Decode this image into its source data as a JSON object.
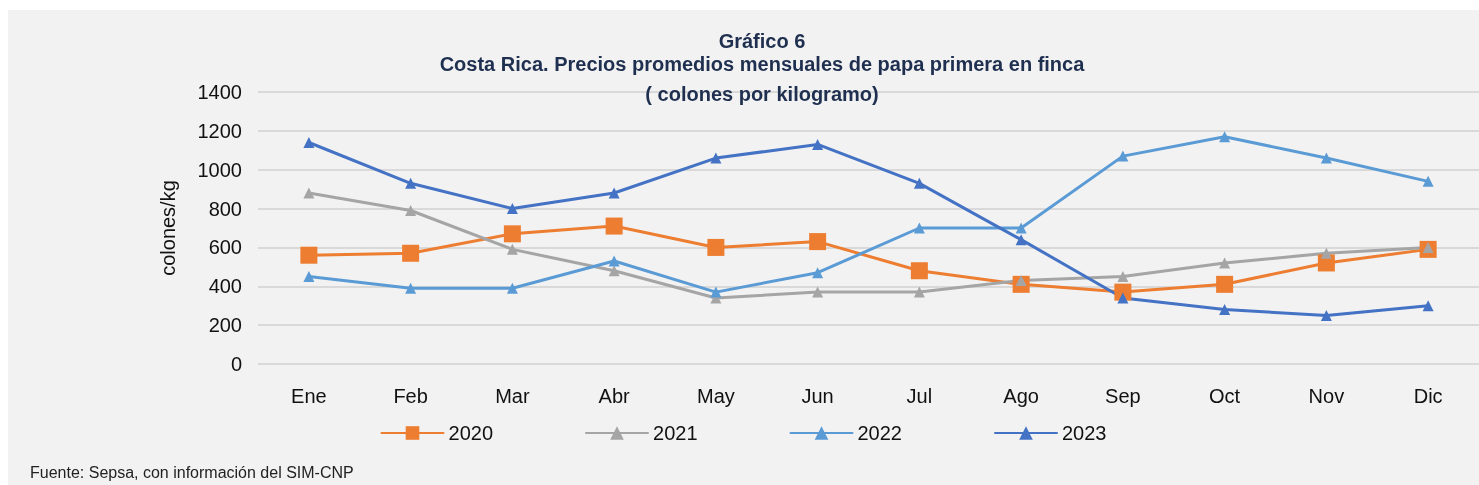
{
  "chart_data": {
    "type": "line",
    "title": "Gráfico 6",
    "subtitle": "Costa Rica. Precios promedios mensuales de papa primera en finca\n( colones por kilogramo)",
    "ylabel": "colones/kg",
    "annotations": [
      "Fuente: Sepsa, con información del SIM-CNP"
    ],
    "categories": [
      "Ene",
      "Feb",
      "Mar",
      "Abr",
      "May",
      "Jun",
      "Jul",
      "Ago",
      "Sep",
      "Oct",
      "Nov",
      "Dic"
    ],
    "series": [
      {
        "name": "2020",
        "color": "#ed7d31",
        "marker": "square",
        "values": [
          560,
          570,
          670,
          710,
          600,
          630,
          480,
          410,
          370,
          410,
          520,
          590
        ]
      },
      {
        "name": "2021",
        "color": "#a5a5a5",
        "marker": "triangle",
        "values": [
          880,
          790,
          590,
          480,
          340,
          370,
          370,
          430,
          450,
          520,
          570,
          600
        ]
      },
      {
        "name": "2022",
        "color": "#5b9bd5",
        "marker": "triangle",
        "values": [
          450,
          390,
          390,
          530,
          370,
          470,
          700,
          700,
          1070,
          1170,
          1060,
          940
        ]
      },
      {
        "name": "2023",
        "color": "#4472c4",
        "marker": "triangle",
        "values": [
          1140,
          930,
          800,
          880,
          1060,
          1130,
          930,
          640,
          340,
          280,
          250,
          300
        ]
      }
    ],
    "ylim": [
      0,
      1400
    ],
    "yticks": [
      0,
      200,
      400,
      600,
      800,
      1000,
      1200,
      1400
    ],
    "grid": "y",
    "legend": "bottom",
    "line_style": "solid"
  }
}
